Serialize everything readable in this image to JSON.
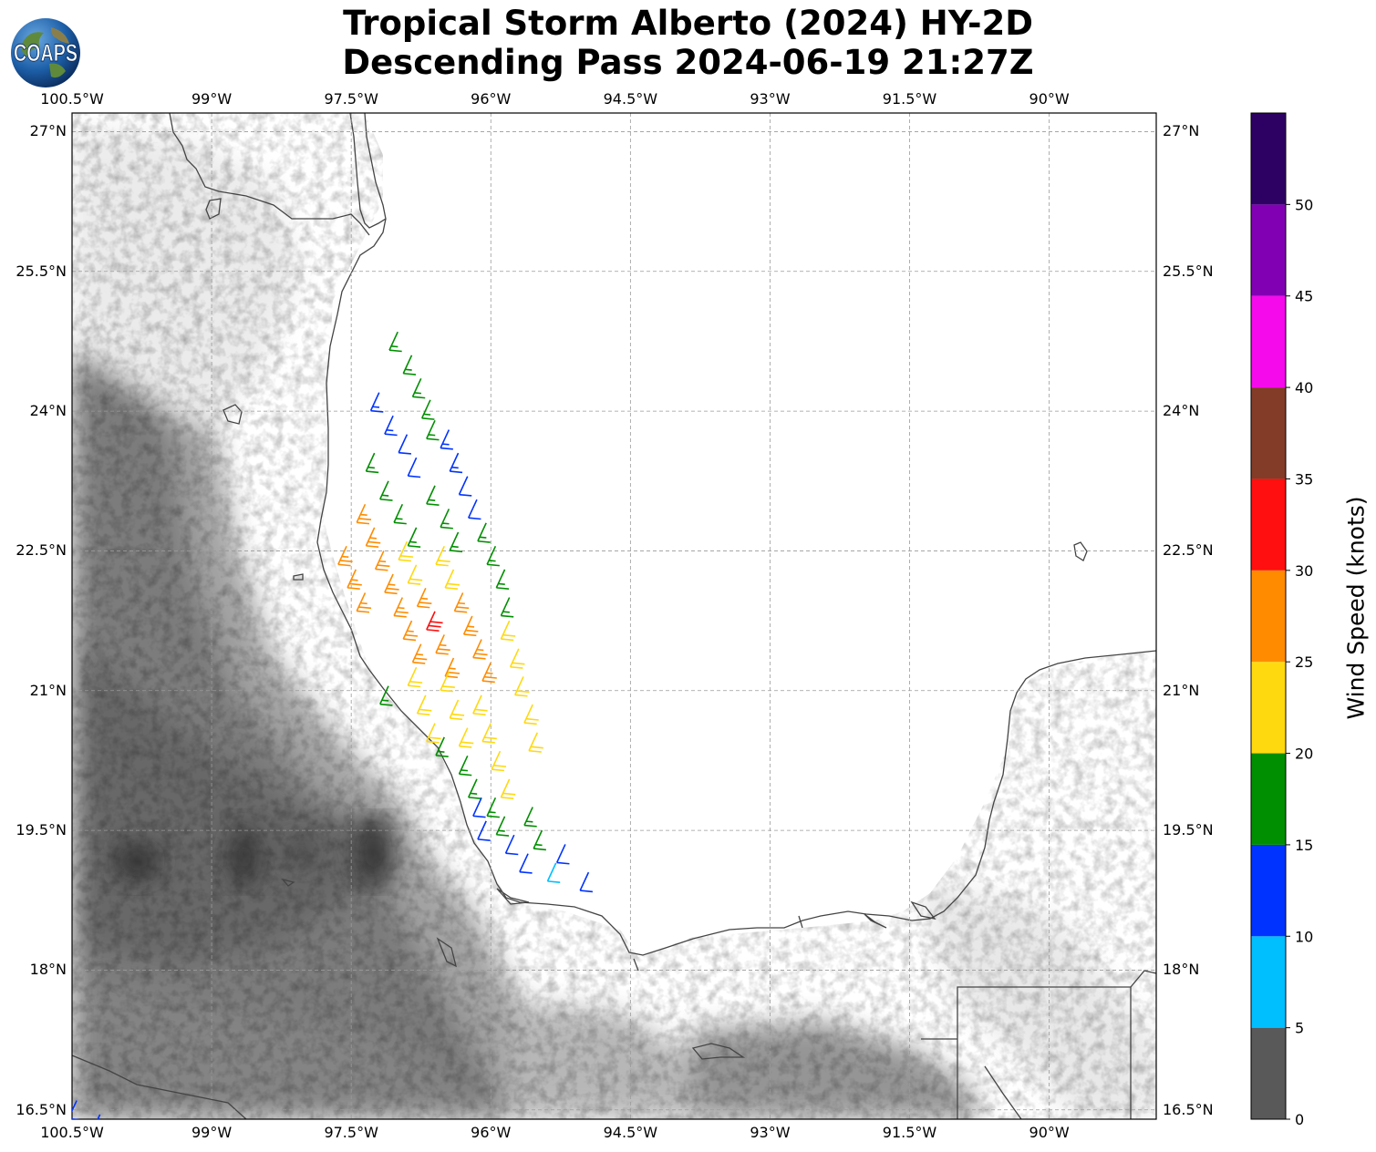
{
  "title": {
    "line1": "Tropical Storm Alberto (2024) HY-2D",
    "line2": "Descending Pass 2024-06-19 21:27Z"
  },
  "logo": {
    "text": "COAPS",
    "icon": "globe-logo-icon"
  },
  "map": {
    "lon_range": [
      -100.5,
      -88.85
    ],
    "lat_range": [
      16.4,
      27.2
    ],
    "lon_ticks": [
      {
        "value": -100.5,
        "label": "100.5°W"
      },
      {
        "value": -99.0,
        "label": "99°W"
      },
      {
        "value": -97.5,
        "label": "97.5°W"
      },
      {
        "value": -96.0,
        "label": "96°W"
      },
      {
        "value": -94.5,
        "label": "94.5°W"
      },
      {
        "value": -93.0,
        "label": "93°W"
      },
      {
        "value": -91.5,
        "label": "91.5°W"
      },
      {
        "value": -90.0,
        "label": "90°W"
      }
    ],
    "lat_ticks": [
      {
        "value": 27.0,
        "label": "27°N"
      },
      {
        "value": 25.5,
        "label": "25.5°N"
      },
      {
        "value": 24.0,
        "label": "24°N"
      },
      {
        "value": 22.5,
        "label": "22.5°N"
      },
      {
        "value": 21.0,
        "label": "21°N"
      },
      {
        "value": 19.5,
        "label": "19.5°N"
      },
      {
        "value": 18.0,
        "label": "18°N"
      },
      {
        "value": 16.5,
        "label": "16.5°N"
      }
    ],
    "grid": true,
    "coastline_color": "#444444",
    "background": "grayscale topography"
  },
  "colorbar": {
    "label": "Wind Speed (knots)",
    "bins": [
      {
        "from": 0,
        "to": 5,
        "color": "#595959"
      },
      {
        "from": 5,
        "to": 10,
        "color": "#00bfff"
      },
      {
        "from": 10,
        "to": 15,
        "color": "#0033ff"
      },
      {
        "from": 15,
        "to": 20,
        "color": "#008f00"
      },
      {
        "from": 20,
        "to": 25,
        "color": "#ffd90f"
      },
      {
        "from": 25,
        "to": 30,
        "color": "#ff8c00"
      },
      {
        "from": 30,
        "to": 35,
        "color": "#ff0f0f"
      },
      {
        "from": 35,
        "to": 40,
        "color": "#823c28"
      },
      {
        "from": 40,
        "to": 45,
        "color": "#f50aeb"
      },
      {
        "from": 45,
        "to": 50,
        "color": "#8200b4"
      },
      {
        "from": 50,
        "to": 55,
        "color": "#2d0064"
      }
    ],
    "tick_labels": [
      "0",
      "5",
      "10",
      "15",
      "20",
      "25",
      "30",
      "35",
      "40",
      "45",
      "50"
    ]
  },
  "wind_barbs": [
    {
      "lon": -97.0,
      "lat": 24.85,
      "speed": 17
    },
    {
      "lon": -96.85,
      "lat": 24.6,
      "speed": 17
    },
    {
      "lon": -96.75,
      "lat": 24.35,
      "speed": 17
    },
    {
      "lon": -96.65,
      "lat": 24.12,
      "speed": 17
    },
    {
      "lon": -97.2,
      "lat": 24.2,
      "speed": 13
    },
    {
      "lon": -97.05,
      "lat": 23.95,
      "speed": 13
    },
    {
      "lon": -96.9,
      "lat": 23.75,
      "speed": 12
    },
    {
      "lon": -96.8,
      "lat": 23.5,
      "speed": 12
    },
    {
      "lon": -96.6,
      "lat": 23.9,
      "speed": 17
    },
    {
      "lon": -96.45,
      "lat": 23.8,
      "speed": 13
    },
    {
      "lon": -96.35,
      "lat": 23.55,
      "speed": 13
    },
    {
      "lon": -96.25,
      "lat": 23.3,
      "speed": 12
    },
    {
      "lon": -96.15,
      "lat": 23.05,
      "speed": 12
    },
    {
      "lon": -97.25,
      "lat": 23.55,
      "speed": 17
    },
    {
      "lon": -97.1,
      "lat": 23.25,
      "speed": 17
    },
    {
      "lon": -96.95,
      "lat": 23.0,
      "speed": 17
    },
    {
      "lon": -96.8,
      "lat": 22.75,
      "speed": 17
    },
    {
      "lon": -96.6,
      "lat": 23.2,
      "speed": 17
    },
    {
      "lon": -96.45,
      "lat": 22.95,
      "speed": 17
    },
    {
      "lon": -96.35,
      "lat": 22.7,
      "speed": 17
    },
    {
      "lon": -96.05,
      "lat": 22.8,
      "speed": 17
    },
    {
      "lon": -95.95,
      "lat": 22.55,
      "speed": 17
    },
    {
      "lon": -95.85,
      "lat": 22.3,
      "speed": 17
    },
    {
      "lon": -95.8,
      "lat": 22.0,
      "speed": 17
    },
    {
      "lon": -97.35,
      "lat": 23.0,
      "speed": 27
    },
    {
      "lon": -97.25,
      "lat": 22.75,
      "speed": 27
    },
    {
      "lon": -97.15,
      "lat": 22.5,
      "speed": 27
    },
    {
      "lon": -97.05,
      "lat": 22.25,
      "speed": 27
    },
    {
      "lon": -96.95,
      "lat": 22.0,
      "speed": 27
    },
    {
      "lon": -96.85,
      "lat": 21.75,
      "speed": 27
    },
    {
      "lon": -96.75,
      "lat": 21.5,
      "speed": 27
    },
    {
      "lon": -97.55,
      "lat": 22.55,
      "speed": 27
    },
    {
      "lon": -97.45,
      "lat": 22.3,
      "speed": 27
    },
    {
      "lon": -97.35,
      "lat": 22.05,
      "speed": 27
    },
    {
      "lon": -96.9,
      "lat": 22.6,
      "speed": 22
    },
    {
      "lon": -96.8,
      "lat": 22.35,
      "speed": 22
    },
    {
      "lon": -96.7,
      "lat": 22.1,
      "speed": 27
    },
    {
      "lon": -96.6,
      "lat": 21.85,
      "speed": 32
    },
    {
      "lon": -96.5,
      "lat": 21.6,
      "speed": 27
    },
    {
      "lon": -96.4,
      "lat": 21.35,
      "speed": 27
    },
    {
      "lon": -96.5,
      "lat": 22.55,
      "speed": 22
    },
    {
      "lon": -96.4,
      "lat": 22.3,
      "speed": 22
    },
    {
      "lon": -96.3,
      "lat": 22.05,
      "speed": 27
    },
    {
      "lon": -96.2,
      "lat": 21.8,
      "speed": 27
    },
    {
      "lon": -96.1,
      "lat": 21.55,
      "speed": 27
    },
    {
      "lon": -96.0,
      "lat": 21.3,
      "speed": 27
    },
    {
      "lon": -95.8,
      "lat": 21.75,
      "speed": 22
    },
    {
      "lon": -95.7,
      "lat": 21.45,
      "speed": 22
    },
    {
      "lon": -95.65,
      "lat": 21.15,
      "speed": 22
    },
    {
      "lon": -95.55,
      "lat": 20.85,
      "speed": 22
    },
    {
      "lon": -95.5,
      "lat": 20.55,
      "speed": 22
    },
    {
      "lon": -96.8,
      "lat": 21.25,
      "speed": 22
    },
    {
      "lon": -96.7,
      "lat": 20.95,
      "speed": 22
    },
    {
      "lon": -96.6,
      "lat": 20.65,
      "speed": 22
    },
    {
      "lon": -96.45,
      "lat": 21.2,
      "speed": 22
    },
    {
      "lon": -96.35,
      "lat": 20.9,
      "speed": 22
    },
    {
      "lon": -96.25,
      "lat": 20.6,
      "speed": 22
    },
    {
      "lon": -96.1,
      "lat": 20.95,
      "speed": 22
    },
    {
      "lon": -96.0,
      "lat": 20.65,
      "speed": 22
    },
    {
      "lon": -95.9,
      "lat": 20.35,
      "speed": 22
    },
    {
      "lon": -95.8,
      "lat": 20.05,
      "speed": 22
    },
    {
      "lon": -97.1,
      "lat": 21.05,
      "speed": 17
    },
    {
      "lon": -96.5,
      "lat": 20.5,
      "speed": 17
    },
    {
      "lon": -96.25,
      "lat": 20.3,
      "speed": 17
    },
    {
      "lon": -96.15,
      "lat": 20.05,
      "speed": 17
    },
    {
      "lon": -95.95,
      "lat": 19.85,
      "speed": 17
    },
    {
      "lon": -95.85,
      "lat": 19.65,
      "speed": 17
    },
    {
      "lon": -95.55,
      "lat": 19.75,
      "speed": 17
    },
    {
      "lon": -95.45,
      "lat": 19.5,
      "speed": 17
    },
    {
      "lon": -96.1,
      "lat": 19.85,
      "speed": 12
    },
    {
      "lon": -96.05,
      "lat": 19.6,
      "speed": 12
    },
    {
      "lon": -95.75,
      "lat": 19.45,
      "speed": 12
    },
    {
      "lon": -95.6,
      "lat": 19.25,
      "speed": 12
    },
    {
      "lon": -95.2,
      "lat": 19.35,
      "speed": 12
    },
    {
      "lon": -94.95,
      "lat": 19.05,
      "speed": 12
    },
    {
      "lon": -95.3,
      "lat": 19.15,
      "speed": 8
    },
    {
      "lon": -100.45,
      "lat": 16.6,
      "speed": 12
    },
    {
      "lon": -100.2,
      "lat": 16.45,
      "speed": 12
    }
  ]
}
